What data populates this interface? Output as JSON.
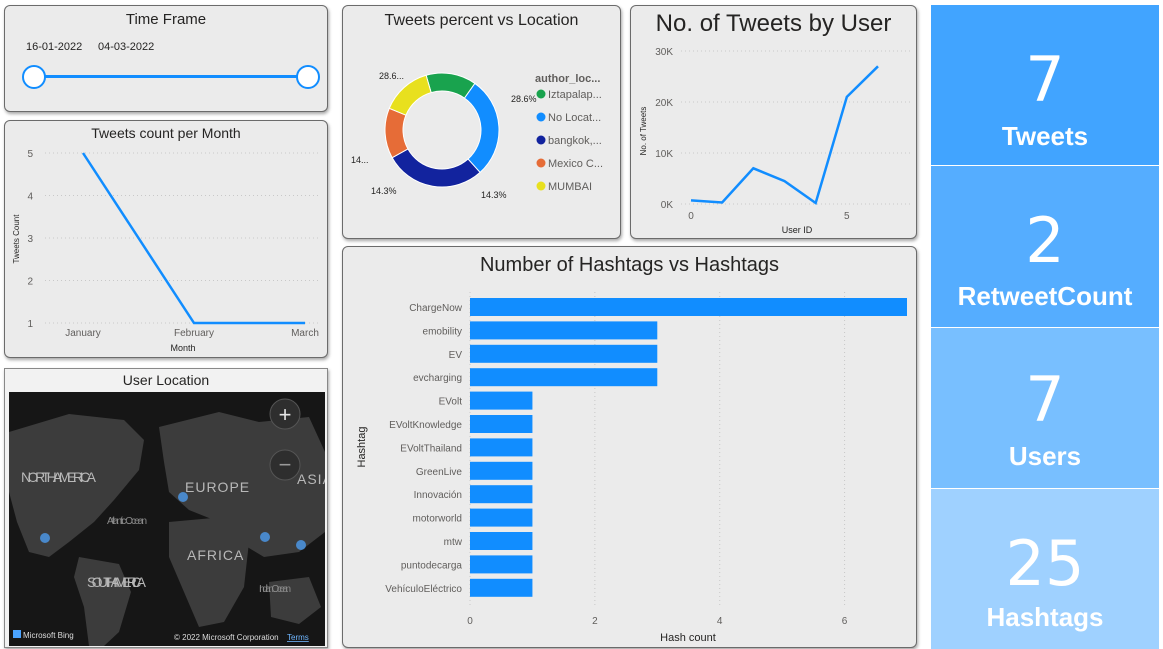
{
  "time_frame": {
    "title": "Time Frame",
    "start": "16-01-2022",
    "end": "04-03-2022"
  },
  "kpis": [
    {
      "value": "7",
      "label": "Tweets",
      "color": "#41a4ff"
    },
    {
      "value": "2",
      "label": "RetweetCount",
      "color": "#55adff"
    },
    {
      "value": "7",
      "label": "Users",
      "color": "#78bfff"
    },
    {
      "value": "25",
      "label": "Hashtags",
      "color": "#9fd1ff"
    }
  ],
  "map": {
    "title": "User Location",
    "labels": {
      "north_america": "NORTH AMERICA",
      "europe": "EUROPE",
      "asia": "ASIA",
      "atlantic": "Atlantic Ocean",
      "africa": "AFRICA",
      "south_america": "SOUTH AMERICA",
      "indian": "Indian Ocean"
    },
    "provider": "Microsoft Bing",
    "copyright": "© 2022 Microsoft Corporation",
    "terms": "Terms"
  },
  "chart_data": [
    {
      "id": "tweets_per_month",
      "type": "line",
      "title": "Tweets count per Month",
      "xlabel": "Month",
      "ylabel": "Tweets Count",
      "categories": [
        "January",
        "February",
        "March"
      ],
      "values": [
        5,
        1,
        1
      ],
      "ylim": [
        1,
        5
      ],
      "yticks": [
        "1",
        "2",
        "3",
        "4",
        "5"
      ],
      "grid": true,
      "color": "#118dff"
    },
    {
      "id": "tweets_vs_location",
      "type": "pie",
      "title": "Tweets percent vs Location",
      "legend_title": "author_loc...",
      "legend_position": "right",
      "slices": [
        {
          "name": "Iztapalap...",
          "value": 28.6,
          "label": "28.6...",
          "color": "#118dff"
        },
        {
          "name": "No Locat...",
          "value": 28.6,
          "label": "28.6%",
          "color": "#12239e"
        },
        {
          "name": "bangkok,...",
          "value": 14.3,
          "label": "14.3%",
          "color": "#e66c37"
        },
        {
          "name": "Mexico C...",
          "value": 14.3,
          "label": "14.3%",
          "color": "#e8e01e"
        },
        {
          "name": "MUMBAI",
          "value": 14.3,
          "label": "14...",
          "color": "#19a34e"
        }
      ],
      "legend": [
        {
          "name": "Iztapalap...",
          "color": "#19a34e"
        },
        {
          "name": "No Locat...",
          "color": "#118dff"
        },
        {
          "name": "bangkok,...",
          "color": "#12239e"
        },
        {
          "name": "Mexico C...",
          "color": "#e66c37"
        },
        {
          "name": "MUMBAI",
          "color": "#e8e01e"
        }
      ]
    },
    {
      "id": "tweets_by_user",
      "type": "line",
      "title": "No. of Tweets by User",
      "xlabel": "User ID",
      "ylabel": "No. of Tweets",
      "x": [
        0,
        1,
        2,
        3,
        4,
        5,
        6
      ],
      "values": [
        700,
        300,
        7000,
        4500,
        200,
        21000,
        27000
      ],
      "ylim": [
        0,
        30000
      ],
      "yticks": [
        "0K",
        "10K",
        "20K",
        "30K"
      ],
      "xticks": [
        "0",
        "5"
      ],
      "grid": true,
      "color": "#118dff"
    },
    {
      "id": "hashtags",
      "type": "bar",
      "orientation": "horizontal",
      "title": "Number of Hashtags vs Hashtags",
      "xlabel": "Hash count",
      "ylabel": "Hashtag",
      "categories": [
        "ChargeNow",
        "emobility",
        "EV",
        "evcharging",
        "EVolt",
        "EVoltKnowledge",
        "EVoltThailand",
        "GreenLive",
        "Innovación",
        "motorworld",
        "mtw",
        "puntodecarga",
        "VehículoEléctrico"
      ],
      "values": [
        7,
        3,
        3,
        3,
        1,
        1,
        1,
        1,
        1,
        1,
        1,
        1,
        1
      ],
      "xlim": [
        0,
        7
      ],
      "xticks": [
        "0",
        "2",
        "4",
        "6"
      ],
      "grid": true,
      "color": "#118dff"
    }
  ]
}
